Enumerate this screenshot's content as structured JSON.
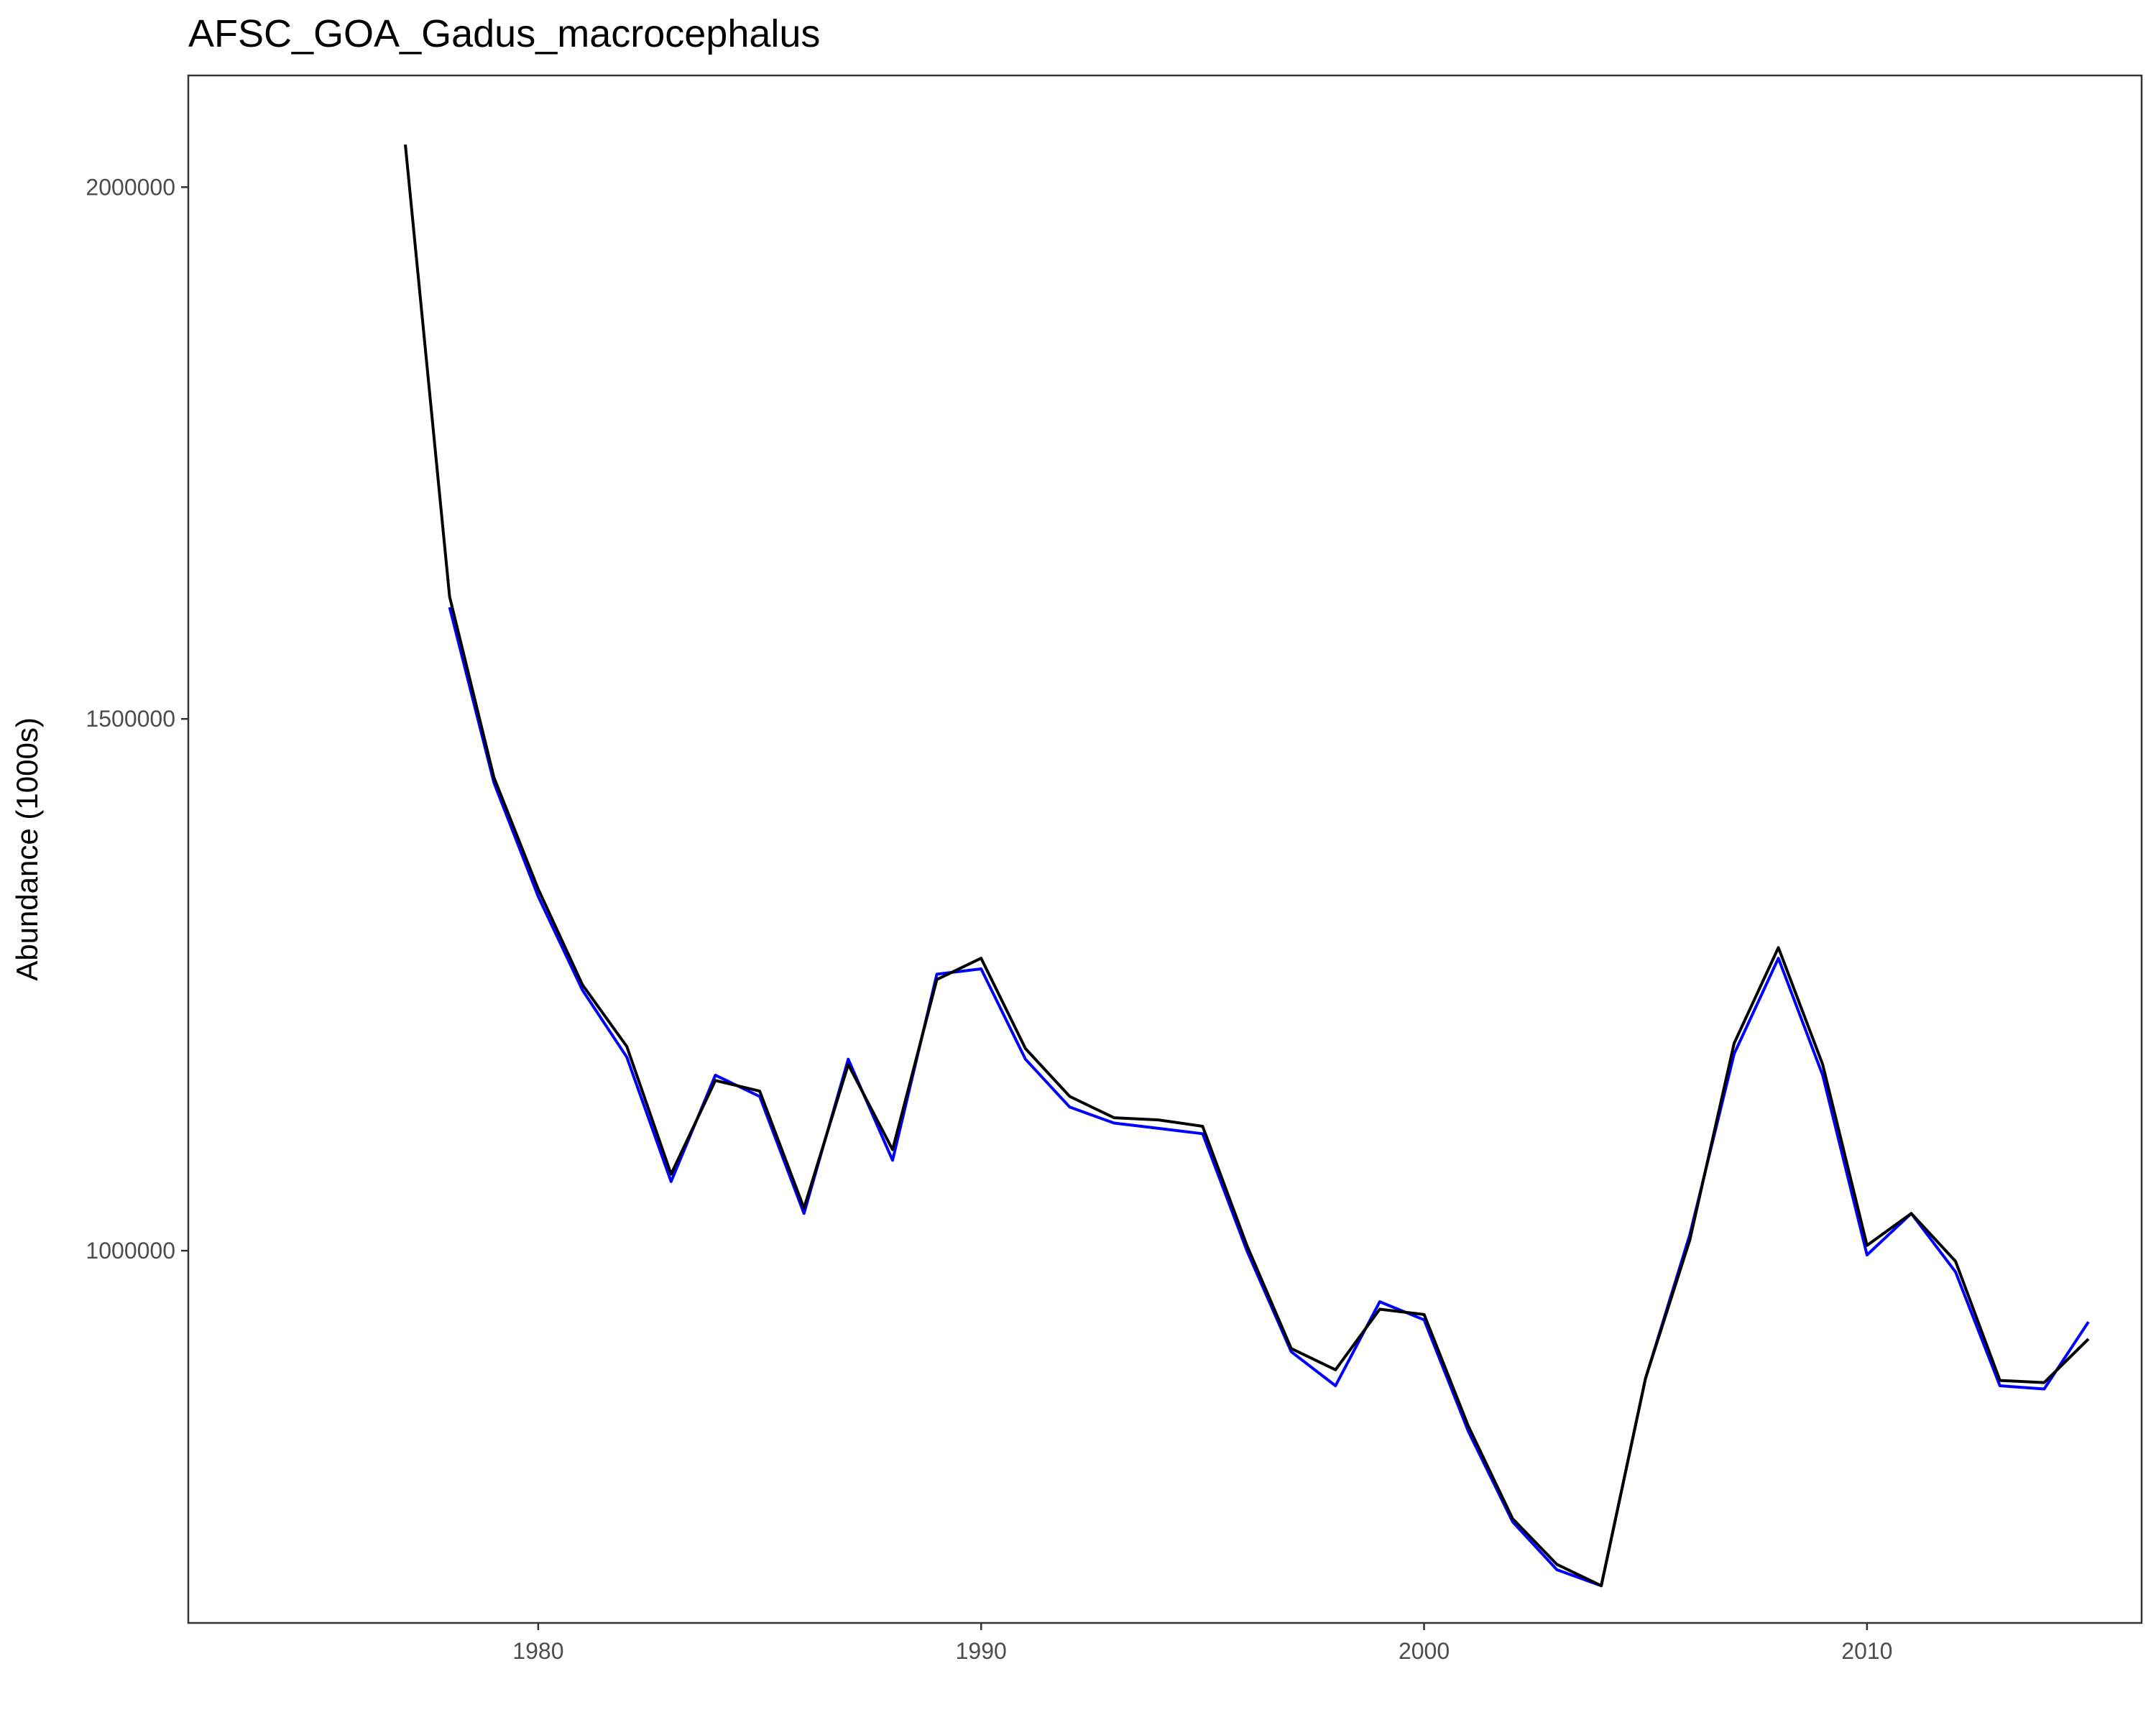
{
  "chart_data": {
    "type": "line",
    "title": "AFSC_GOA_Gadus_macrocephalus",
    "xlabel": "",
    "ylabel": "Abundance (1000s)",
    "xlim": [
      1972.1,
      2016.2
    ],
    "ylim": [
      650000,
      2105000
    ],
    "x_ticks": [
      1980,
      1990,
      2000,
      2010
    ],
    "y_ticks": [
      1000000,
      1500000,
      2000000
    ],
    "grid": false,
    "legend": "none",
    "series": [
      {
        "color": "#0000ff",
        "x": [
          1978,
          1979,
          1980,
          1981,
          1982,
          1983,
          1984,
          1985,
          1986,
          1987,
          1988,
          1989,
          1990,
          1991,
          1992,
          1993,
          1994,
          1995,
          1996,
          1997,
          1998,
          1999,
          2000,
          2001,
          2002,
          2003,
          2004,
          2005,
          2006,
          2007,
          2008,
          2009,
          2010,
          2011,
          2012,
          2013,
          2014,
          2015
        ],
        "y": [
          1605000,
          1440000,
          1333000,
          1245000,
          1182000,
          1065000,
          1165000,
          1145000,
          1035000,
          1180000,
          1085000,
          1260000,
          1265000,
          1180000,
          1135000,
          1120000,
          1115000,
          1110000,
          1000000,
          905000,
          873000,
          952000,
          935000,
          830000,
          745000,
          700000,
          685000,
          880000,
          1015000,
          1185000,
          1275000,
          1165000,
          996000,
          1035000,
          980000,
          873000,
          870000,
          933000
        ]
      },
      {
        "color": "#000000",
        "x": [
          1977,
          1978,
          1979,
          1980,
          1981,
          1982,
          1983,
          1984,
          1985,
          1986,
          1987,
          1988,
          1989,
          1990,
          1991,
          1992,
          1993,
          1994,
          1995,
          1996,
          1997,
          1998,
          1999,
          2000,
          2001,
          2002,
          2003,
          2004,
          2005,
          2006,
          2007,
          2008,
          2009,
          2010,
          2011,
          2012,
          2013,
          2014,
          2015
        ],
        "y": [
          2040000,
          1615000,
          1445000,
          1340000,
          1250000,
          1192000,
          1072000,
          1160000,
          1150000,
          1040000,
          1175000,
          1095000,
          1255000,
          1275000,
          1190000,
          1145000,
          1125000,
          1123000,
          1117000,
          1005000,
          908000,
          888000,
          945000,
          940000,
          835000,
          748000,
          705000,
          685000,
          880000,
          1010000,
          1195000,
          1285000,
          1175000,
          1005000,
          1035000,
          990000,
          878000,
          876000,
          917000
        ]
      }
    ]
  }
}
